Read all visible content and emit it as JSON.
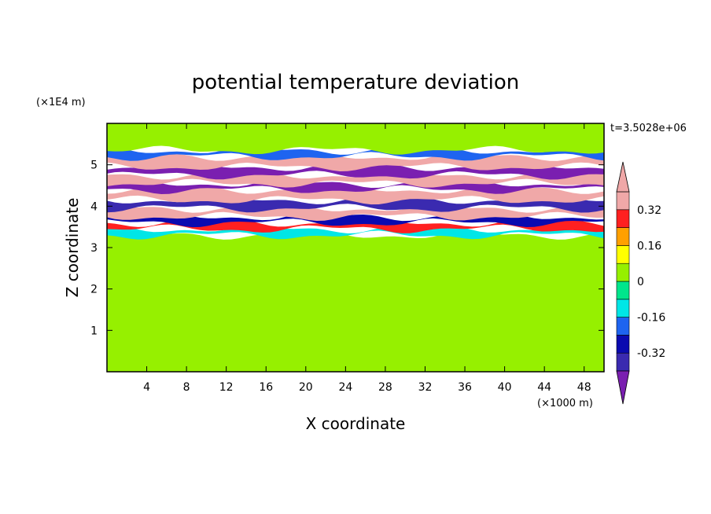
{
  "chart_data": {
    "type": "heatmap",
    "title": "potential temperature deviation",
    "time_label": "t=3.5028e+06",
    "xlabel": "X coordinate",
    "ylabel": "Z coordinate",
    "x_unit": "(×1000 m)",
    "y_unit": "(×1E4 m)",
    "xlim": [
      0,
      50
    ],
    "ylim": [
      0,
      6
    ],
    "x_ticks": [
      "4",
      "8",
      "12",
      "16",
      "20",
      "24",
      "28",
      "32",
      "36",
      "40",
      "44",
      "48"
    ],
    "y_ticks": [
      "1",
      "2",
      "3",
      "4",
      "5"
    ],
    "x_tick_values": [
      4,
      8,
      12,
      16,
      20,
      24,
      28,
      32,
      36,
      40,
      44,
      48
    ],
    "y_tick_values": [
      1,
      2,
      3,
      4,
      5
    ],
    "colorbar": {
      "labels": [
        "0.32",
        "0.16",
        "0",
        "-0.16",
        "-0.32"
      ],
      "label_values": [
        0.32,
        0.16,
        0,
        -0.16,
        -0.32
      ],
      "levels": [
        -0.4,
        -0.32,
        -0.24,
        -0.16,
        -0.08,
        0,
        0.08,
        0.16,
        0.24,
        0.32,
        0.4
      ],
      "colors": [
        "#7a1fb0",
        "#3a2ab0",
        "#0a0ab0",
        "#1e64f0",
        "#00e6e6",
        "#00e68c",
        "#96f000",
        "#ffff00",
        "#ffa000",
        "#ff2020",
        "#f0a8a8"
      ],
      "extend": "both"
    },
    "bands": [
      {
        "z": [
          0.0,
          3.3
        ],
        "value": 0.0
      },
      {
        "z": [
          3.3,
          3.45
        ],
        "value": -0.12
      },
      {
        "z": [
          3.45,
          3.6
        ],
        "value": 0.3
      },
      {
        "z": [
          3.6,
          3.75
        ],
        "value": -0.3
      },
      {
        "z": [
          3.75,
          3.95
        ],
        "value": 0.42
      },
      {
        "z": [
          3.95,
          4.15
        ],
        "value": -0.38
      },
      {
        "z": [
          4.15,
          4.4
        ],
        "value": 0.42
      },
      {
        "z": [
          4.4,
          4.55
        ],
        "value": -0.42
      },
      {
        "z": [
          4.55,
          4.75
        ],
        "value": 0.42
      },
      {
        "z": [
          4.75,
          4.95
        ],
        "value": -0.42
      },
      {
        "z": [
          4.95,
          5.2
        ],
        "value": 0.42
      },
      {
        "z": [
          5.2,
          5.35
        ],
        "value": -0.2
      },
      {
        "z": [
          5.35,
          6.0
        ],
        "value": 0.02
      }
    ]
  }
}
